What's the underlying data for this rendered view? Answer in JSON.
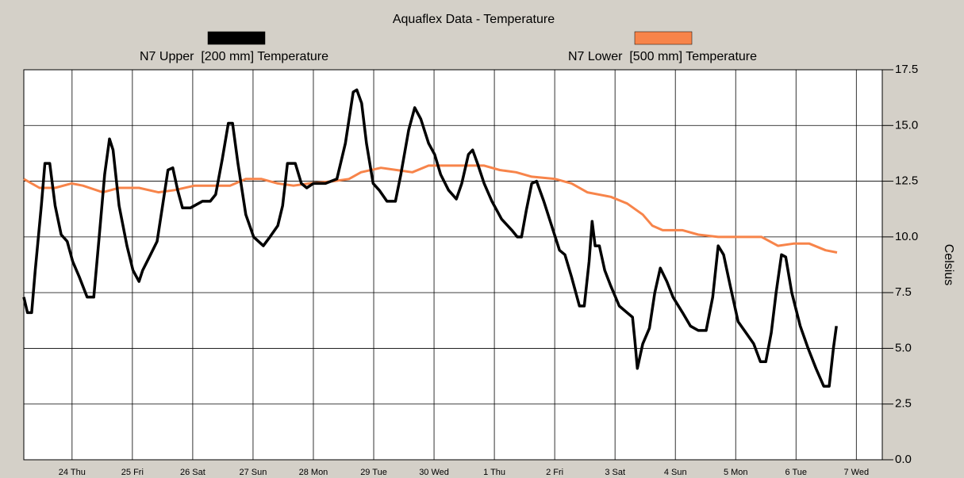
{
  "chart_data": {
    "type": "line",
    "title": "Aquaflex Data - Temperature",
    "y_label": "Celsius",
    "xlim": [
      0.2,
      14.43
    ],
    "xticks": [
      {
        "value": 1,
        "label": "24 Thu"
      },
      {
        "value": 2,
        "label": "25 Fri"
      },
      {
        "value": 3,
        "label": "26 Sat"
      },
      {
        "value": 4,
        "label": "27 Sun"
      },
      {
        "value": 5,
        "label": "28 Mon"
      },
      {
        "value": 6,
        "label": "29 Tue"
      },
      {
        "value": 7,
        "label": "30 Wed"
      },
      {
        "value": 8,
        "label": "1 Thu"
      },
      {
        "value": 9,
        "label": "2 Fri"
      },
      {
        "value": 10,
        "label": "3 Sat"
      },
      {
        "value": 11,
        "label": "4 Sun"
      },
      {
        "value": 12,
        "label": "5 Mon"
      },
      {
        "value": 13,
        "label": "6 Tue"
      },
      {
        "value": 14,
        "label": "7 Wed"
      }
    ],
    "ylim": [
      0,
      17.5
    ],
    "yticks": [
      {
        "value": 0,
        "label": "0.0"
      },
      2.5,
      {
        "value": 5,
        "label": "5.0"
      },
      7.5,
      {
        "value": 10,
        "label": "10.0"
      },
      12.5,
      {
        "value": 15,
        "label": "15.0"
      },
      17.5
    ],
    "grid": true,
    "series": [
      {
        "name": "N7 Upper  [200 mm] Temperature",
        "color": "#000000",
        "x": [
          0.2,
          0.26,
          0.33,
          0.39,
          0.49,
          0.55,
          0.63,
          0.72,
          0.82,
          0.92,
          1.01,
          1.12,
          1.25,
          1.36,
          1.45,
          1.54,
          1.62,
          1.68,
          1.78,
          1.91,
          2.01,
          2.11,
          2.17,
          2.3,
          2.41,
          2.5,
          2.59,
          2.67,
          2.75,
          2.83,
          2.96,
          3.16,
          3.29,
          3.38,
          3.49,
          3.59,
          3.66,
          3.75,
          3.88,
          4.01,
          4.17,
          4.28,
          4.41,
          4.49,
          4.57,
          4.7,
          4.8,
          4.89,
          5.0,
          5.2,
          5.39,
          5.53,
          5.66,
          5.72,
          5.8,
          5.88,
          5.99,
          6.09,
          6.22,
          6.36,
          6.45,
          6.58,
          6.68,
          6.78,
          6.91,
          7.01,
          7.11,
          7.24,
          7.37,
          7.46,
          7.57,
          7.64,
          7.72,
          7.83,
          7.96,
          8.12,
          8.29,
          8.38,
          8.45,
          8.53,
          8.62,
          8.7,
          8.82,
          8.95,
          9.08,
          9.17,
          9.28,
          9.41,
          9.49,
          9.57,
          9.62,
          9.67,
          9.74,
          9.83,
          9.93,
          10.07,
          10.2,
          10.29,
          10.33,
          10.37,
          10.46,
          10.57,
          10.66,
          10.75,
          10.86,
          10.96,
          11.12,
          11.25,
          11.38,
          11.51,
          11.62,
          11.71,
          11.8,
          11.91,
          12.04,
          12.17,
          12.3,
          12.41,
          12.5,
          12.59,
          12.67,
          12.76,
          12.83,
          12.93,
          13.07,
          13.2,
          13.33,
          13.46,
          13.55,
          13.62,
          13.67
        ],
        "values": [
          7.3,
          6.6,
          6.6,
          8.5,
          11.4,
          13.3,
          13.3,
          11.4,
          10.1,
          9.8,
          8.9,
          8.2,
          7.3,
          7.3,
          10.0,
          12.8,
          14.4,
          13.9,
          11.4,
          9.6,
          8.5,
          8.0,
          8.5,
          9.2,
          9.8,
          11.4,
          13.0,
          13.1,
          12.1,
          11.3,
          11.3,
          11.6,
          11.6,
          11.9,
          13.5,
          15.1,
          15.1,
          13.3,
          11.0,
          10.0,
          9.6,
          10.0,
          10.5,
          11.4,
          13.3,
          13.3,
          12.4,
          12.2,
          12.4,
          12.4,
          12.6,
          14.2,
          16.5,
          16.6,
          16.0,
          14.2,
          12.4,
          12.1,
          11.6,
          11.6,
          12.8,
          14.8,
          15.8,
          15.3,
          14.2,
          13.7,
          12.8,
          12.1,
          11.7,
          12.4,
          13.7,
          13.9,
          13.3,
          12.4,
          11.6,
          10.8,
          10.3,
          10.0,
          10.0,
          11.2,
          12.4,
          12.5,
          11.6,
          10.5,
          9.4,
          9.2,
          8.2,
          6.9,
          6.9,
          8.9,
          10.7,
          9.6,
          9.6,
          8.5,
          7.8,
          6.9,
          6.6,
          6.4,
          5.3,
          4.1,
          5.2,
          5.9,
          7.5,
          8.6,
          8.0,
          7.3,
          6.6,
          6.0,
          5.8,
          5.8,
          7.3,
          9.6,
          9.2,
          7.8,
          6.2,
          5.7,
          5.2,
          4.4,
          4.4,
          5.7,
          7.5,
          9.2,
          9.1,
          7.5,
          6.0,
          5.0,
          4.1,
          3.3,
          3.3,
          5.0,
          6.0
        ]
      },
      {
        "name": "N7 Lower  [500 mm] Temperature",
        "color": "#f7844a",
        "x": [
          0.2,
          0.46,
          0.72,
          0.99,
          1.18,
          1.51,
          1.78,
          2.11,
          2.43,
          2.7,
          3.03,
          3.62,
          3.88,
          4.14,
          4.41,
          4.67,
          4.93,
          5.33,
          5.59,
          5.79,
          6.12,
          6.38,
          6.64,
          6.91,
          7.43,
          7.83,
          8.09,
          8.36,
          8.62,
          9.01,
          9.28,
          9.54,
          9.93,
          10.2,
          10.46,
          10.62,
          10.79,
          11.12,
          11.38,
          11.71,
          12.04,
          12.43,
          12.7,
          12.96,
          13.22,
          13.49,
          13.68
        ],
        "values": [
          12.6,
          12.2,
          12.2,
          12.4,
          12.3,
          12.0,
          12.2,
          12.2,
          12.0,
          12.1,
          12.3,
          12.3,
          12.6,
          12.6,
          12.4,
          12.3,
          12.4,
          12.5,
          12.6,
          12.9,
          13.1,
          13.0,
          12.9,
          13.2,
          13.2,
          13.2,
          13.0,
          12.9,
          12.7,
          12.6,
          12.4,
          12.0,
          11.8,
          11.5,
          11.0,
          10.5,
          10.3,
          10.3,
          10.1,
          10.0,
          10.0,
          10.0,
          9.6,
          9.7,
          9.7,
          9.4,
          9.3
        ]
      }
    ]
  }
}
